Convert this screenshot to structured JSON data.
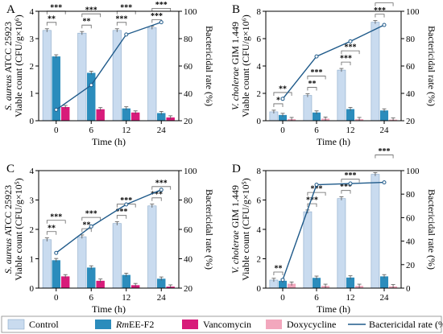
{
  "chart_data": [
    {
      "type": "bar",
      "panel": "A",
      "categories": [
        "0",
        "6",
        "12",
        "24"
      ],
      "xlabel": "Time (h)",
      "ylabel_species": "S. aureus",
      "ylabel_strain": " ATCC 25923",
      "ylabel_line2": "Viable count (CFU/g×10⁶)",
      "y2label": "Bactericidal rate (%)",
      "ylim": [
        0,
        4
      ],
      "yticks": [
        0,
        1,
        2,
        3,
        4
      ],
      "y2lim": [
        20,
        100
      ],
      "y2ticks": [
        20,
        40,
        60,
        80,
        100
      ],
      "series": [
        {
          "name": "Control",
          "values": [
            3.3,
            3.2,
            3.3,
            3.4
          ]
        },
        {
          "name": "RmEE-F2",
          "values": [
            2.35,
            1.75,
            0.45,
            0.28
          ]
        },
        {
          "name": "Vancomycin",
          "values": [
            0.5,
            0.42,
            0.3,
            0.12
          ]
        }
      ],
      "rate": [
        28,
        46,
        83,
        92
      ],
      "sig": [
        [
          "**",
          "***"
        ],
        [
          "**",
          "***"
        ],
        [
          "***",
          "***"
        ],
        [
          "***",
          "***"
        ]
      ]
    },
    {
      "type": "bar",
      "panel": "B",
      "categories": [
        "0",
        "6",
        "12",
        "24"
      ],
      "xlabel": "Time (h)",
      "ylabel_species": "V. cholerae",
      "ylabel_strain": " GIM 1.449",
      "ylabel_line2": "Viable count (CFU/g×10⁶)",
      "y2label": "Bactericidal rate (%)",
      "ylim": [
        0,
        8
      ],
      "yticks": [
        0,
        2,
        4,
        6,
        8
      ],
      "y2lim": [
        20,
        100
      ],
      "y2ticks": [
        20,
        40,
        60,
        80,
        100
      ],
      "series": [
        {
          "name": "Control",
          "values": [
            0.65,
            1.85,
            3.7,
            7.2
          ]
        },
        {
          "name": "RmEE-F2",
          "values": [
            0.42,
            0.6,
            0.85,
            0.75
          ]
        },
        {
          "name": "Doxycycline",
          "values": [
            0.12,
            0.15,
            0.12,
            0.08
          ]
        }
      ],
      "rate": [
        36,
        67,
        78,
        90
      ],
      "sig": [
        [
          "*",
          "**"
        ],
        [
          "**",
          "***"
        ],
        [
          "***",
          "***"
        ],
        [
          "***",
          "***"
        ]
      ]
    },
    {
      "type": "bar",
      "panel": "C",
      "categories": [
        "0",
        "6",
        "12",
        "24"
      ],
      "xlabel": "Time (h)",
      "ylabel_species": "S. aureus",
      "ylabel_strain": " ATCC 25923",
      "ylabel_line2": "Viable count (CFU/g×10⁵)",
      "y2label": "Bactericidal rate (%)",
      "ylim": [
        0,
        4
      ],
      "yticks": [
        0,
        1,
        2,
        3,
        4
      ],
      "y2lim": [
        20,
        100
      ],
      "y2ticks": [
        20,
        40,
        60,
        80,
        100
      ],
      "series": [
        {
          "name": "Control",
          "values": [
            1.65,
            1.75,
            2.2,
            2.8
          ]
        },
        {
          "name": "RmEE-F2",
          "values": [
            0.95,
            0.7,
            0.45,
            0.32
          ]
        },
        {
          "name": "Vancomycin",
          "values": [
            0.4,
            0.25,
            0.1,
            0.05
          ]
        }
      ],
      "rate": [
        44,
        62,
        77,
        87
      ],
      "sig": [
        [
          "**",
          "***"
        ],
        [
          "**",
          "***"
        ],
        [
          "***",
          "***"
        ],
        [
          "***",
          "***"
        ]
      ]
    },
    {
      "type": "bar",
      "panel": "D",
      "categories": [
        "0",
        "6",
        "12",
        "24"
      ],
      "xlabel": "Time (h)",
      "ylabel_species": "V. cholerae",
      "ylabel_strain": " GIM 1.449",
      "ylabel_line2": "Viable count (CFU/g×10⁵)",
      "y2label": "Bactericidal rate (%)",
      "ylim": [
        0,
        8
      ],
      "yticks": [
        0,
        2,
        4,
        6,
        8
      ],
      "y2lim": [
        0,
        100
      ],
      "y2ticks": [
        0,
        20,
        40,
        60,
        80,
        100
      ],
      "series": [
        {
          "name": "Control",
          "values": [
            0.55,
            5.2,
            6.1,
            7.75
          ]
        },
        {
          "name": "RmEE-F2",
          "values": [
            0.5,
            0.7,
            0.72,
            0.8
          ]
        },
        {
          "name": "Doxycycline",
          "values": [
            0.3,
            0.15,
            0.15,
            0.12
          ]
        }
      ],
      "rate": [
        7,
        88,
        89,
        90
      ],
      "sig": [
        [
          "**",
          ""
        ],
        [
          "***",
          "***"
        ],
        [
          "***",
          "***"
        ],
        [
          "",
          "***"
        ]
      ]
    }
  ],
  "legend": [
    {
      "label": "Control",
      "kind": "bar"
    },
    {
      "label": "RmEE-F2",
      "kind": "bar"
    },
    {
      "label": "Vancomycin",
      "kind": "bar"
    },
    {
      "label": "Doxycycline",
      "kind": "bar"
    },
    {
      "label": "Bactericidal rate (%)",
      "kind": "line"
    }
  ],
  "colors": {
    "control": "#c9dbef",
    "control_stroke": "#8aa9c8",
    "rmee": "#2b8cbc",
    "vancomycin": "#d81b7a",
    "doxycycline": "#f2a7bd",
    "rate_line": "#1f5a8a"
  }
}
